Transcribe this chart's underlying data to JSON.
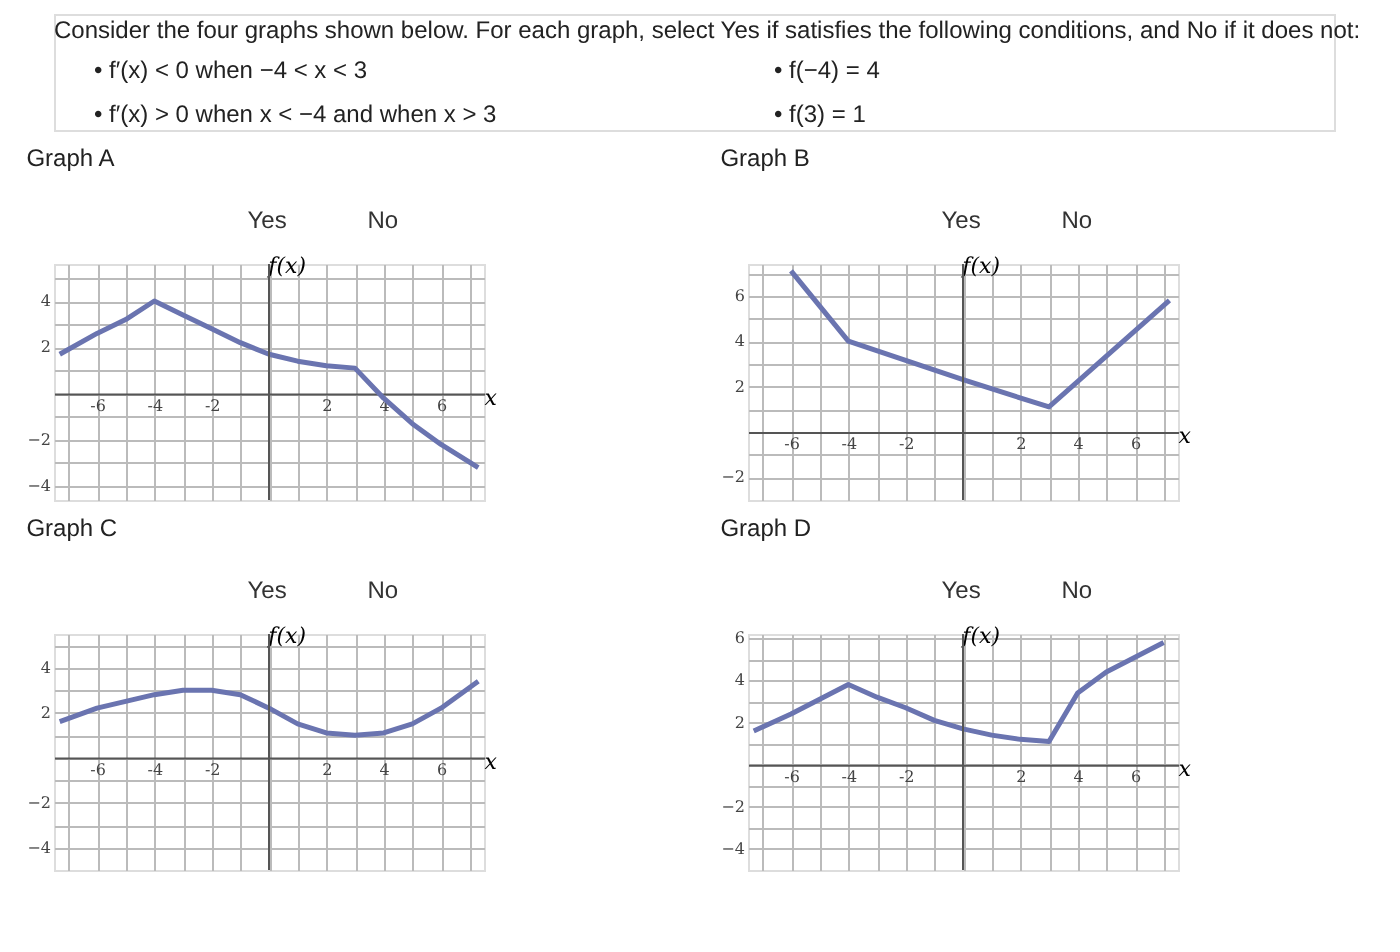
{
  "chart_data": [
    {
      "type": "line",
      "title": "Graph A",
      "xlabel": "x",
      "ylabel": "f(x)",
      "annotations": [
        "Consider the four graphs shown below.  For each graph, select Yes if satisfies the following conditions, and No if it does not:",
        "• f′(x) < 0 when −4 < x < 3",
        "• f′(x) > 0 when x < −4 and when x > 3",
        "• f(−4) = 4",
        "• f(3) = 1",
        "Yes",
        "No"
      ],
      "x": [
        -7.3,
        -6,
        -5,
        -4,
        -3,
        -2,
        -1,
        0,
        1,
        2,
        3,
        4,
        5,
        6,
        7.3
      ],
      "series": [
        {
          "color": "#6a74b0",
          "values": [
            1.7,
            2.6,
            3.2,
            4,
            3.4,
            2.8,
            2.2,
            1.7,
            1.4,
            1.2,
            1.1,
            -0.2,
            -1.3,
            -2.2,
            -3.2
          ]
        }
      ],
      "xlim": [
        -7.5,
        7.5
      ],
      "ylim": [
        -4.6,
        5.6
      ],
      "xticks": [
        {
          "value": -7,
          "label": null
        },
        -6,
        {
          "value": -5,
          "label": null
        },
        -4,
        {
          "value": -3,
          "label": null
        },
        -2,
        {
          "value": -1,
          "label": null
        },
        {
          "value": 0,
          "label": null
        },
        {
          "value": 1,
          "label": null
        },
        2,
        {
          "value": 3,
          "label": null
        },
        4,
        {
          "value": 5,
          "label": null
        },
        6,
        {
          "value": 7,
          "label": null
        }
      ],
      "yticks": [
        {
          "value": -4,
          "label": "−4"
        },
        {
          "value": -3,
          "label": null
        },
        {
          "value": -2,
          "label": "−2"
        },
        {
          "value": -1,
          "label": null
        },
        {
          "value": 0,
          "label": null
        },
        {
          "value": 1,
          "label": null
        },
        2,
        {
          "value": 3,
          "label": null
        },
        4,
        {
          "value": 5,
          "label": null
        }
      ],
      "grid": true,
      "marker": "none",
      "line_style": "solid"
    },
    {
      "type": "line",
      "title": "Graph B",
      "xlabel": "x",
      "ylabel": "f(x)",
      "annotations": [
        "Yes",
        "No"
      ],
      "x": [
        -6,
        -4,
        0,
        3,
        7.2
      ],
      "series": [
        {
          "color": "#6a74b0",
          "values": [
            7.1,
            4,
            2.3,
            1.1,
            5.8
          ]
        }
      ],
      "xlim": [
        -7.5,
        7.5
      ],
      "ylim": [
        -3,
        7.4
      ],
      "xticks": [
        {
          "value": -7,
          "label": null
        },
        -6,
        {
          "value": -5,
          "label": null
        },
        -4,
        {
          "value": -3,
          "label": null
        },
        -2,
        {
          "value": -1,
          "label": null
        },
        {
          "value": 0,
          "label": null
        },
        {
          "value": 1,
          "label": null
        },
        2,
        {
          "value": 3,
          "label": null
        },
        4,
        {
          "value": 5,
          "label": null
        },
        6,
        {
          "value": 7,
          "label": null
        }
      ],
      "yticks": [
        {
          "value": -2,
          "label": "−2"
        },
        {
          "value": -1,
          "label": null
        },
        {
          "value": 0,
          "label": null
        },
        {
          "value": 1,
          "label": null
        },
        2,
        {
          "value": 3,
          "label": null
        },
        4,
        {
          "value": 5,
          "label": null
        },
        6,
        {
          "value": 7,
          "label": null
        }
      ],
      "grid": true,
      "marker": "none",
      "line_style": "solid"
    },
    {
      "type": "line",
      "title": "Graph C",
      "xlabel": "x",
      "ylabel": "f(x)",
      "annotations": [
        "Yes",
        "No"
      ],
      "x": [
        -7.3,
        -6,
        -5,
        -4,
        -3,
        -2,
        -1,
        0,
        1,
        2,
        3,
        4,
        5,
        6,
        7.3
      ],
      "series": [
        {
          "color": "#6a74b0",
          "values": [
            1.6,
            2.2,
            2.5,
            2.8,
            3,
            3,
            2.8,
            2.2,
            1.5,
            1.1,
            1.0,
            1.1,
            1.5,
            2.2,
            3.4
          ]
        }
      ],
      "xlim": [
        -7.5,
        7.5
      ],
      "ylim": [
        -5,
        5.5
      ],
      "xticks": [
        {
          "value": -7,
          "label": null
        },
        -6,
        {
          "value": -5,
          "label": null
        },
        -4,
        {
          "value": -3,
          "label": null
        },
        -2,
        {
          "value": -1,
          "label": null
        },
        {
          "value": 0,
          "label": null
        },
        {
          "value": 1,
          "label": null
        },
        2,
        {
          "value": 3,
          "label": null
        },
        4,
        {
          "value": 5,
          "label": null
        },
        6,
        {
          "value": 7,
          "label": null
        }
      ],
      "yticks": [
        {
          "value": -4,
          "label": "−4"
        },
        {
          "value": -3,
          "label": null
        },
        {
          "value": -2,
          "label": "−2"
        },
        {
          "value": -1,
          "label": null
        },
        {
          "value": 0,
          "label": null
        },
        {
          "value": 1,
          "label": null
        },
        2,
        {
          "value": 3,
          "label": null
        },
        4,
        {
          "value": 5,
          "label": null
        }
      ],
      "grid": true,
      "marker": "none",
      "line_style": "solid"
    },
    {
      "type": "line",
      "title": "Graph D",
      "xlabel": "x",
      "ylabel": "f(x)",
      "annotations": [
        "Yes",
        "No"
      ],
      "x": [
        -7.3,
        -6,
        -5,
        -4,
        -3,
        -2,
        -1,
        0,
        1,
        2,
        3,
        4,
        5,
        6,
        7
      ],
      "series": [
        {
          "color": "#6a74b0",
          "values": [
            1.6,
            2.4,
            3.1,
            3.8,
            3.2,
            2.7,
            2.1,
            1.7,
            1.4,
            1.2,
            1.1,
            3.4,
            4.4,
            5.1,
            5.8
          ]
        }
      ],
      "xlim": [
        -7.5,
        7.5
      ],
      "ylim": [
        -5,
        6.2
      ],
      "xticks": [
        {
          "value": -7,
          "label": null
        },
        -6,
        {
          "value": -5,
          "label": null
        },
        -4,
        {
          "value": -3,
          "label": null
        },
        -2,
        {
          "value": -1,
          "label": null
        },
        {
          "value": 0,
          "label": null
        },
        {
          "value": 1,
          "label": null
        },
        2,
        {
          "value": 3,
          "label": null
        },
        4,
        {
          "value": 5,
          "label": null
        },
        6,
        {
          "value": 7,
          "label": null
        }
      ],
      "yticks": [
        {
          "value": -4,
          "label": "−4"
        },
        {
          "value": -3,
          "label": null
        },
        {
          "value": -2,
          "label": "−2"
        },
        {
          "value": -1,
          "label": null
        },
        {
          "value": 0,
          "label": null
        },
        {
          "value": 1,
          "label": null
        },
        2,
        {
          "value": 3,
          "label": null
        },
        4,
        {
          "value": 5,
          "label": null
        },
        6
      ],
      "grid": true,
      "marker": "none",
      "line_style": "solid"
    }
  ]
}
